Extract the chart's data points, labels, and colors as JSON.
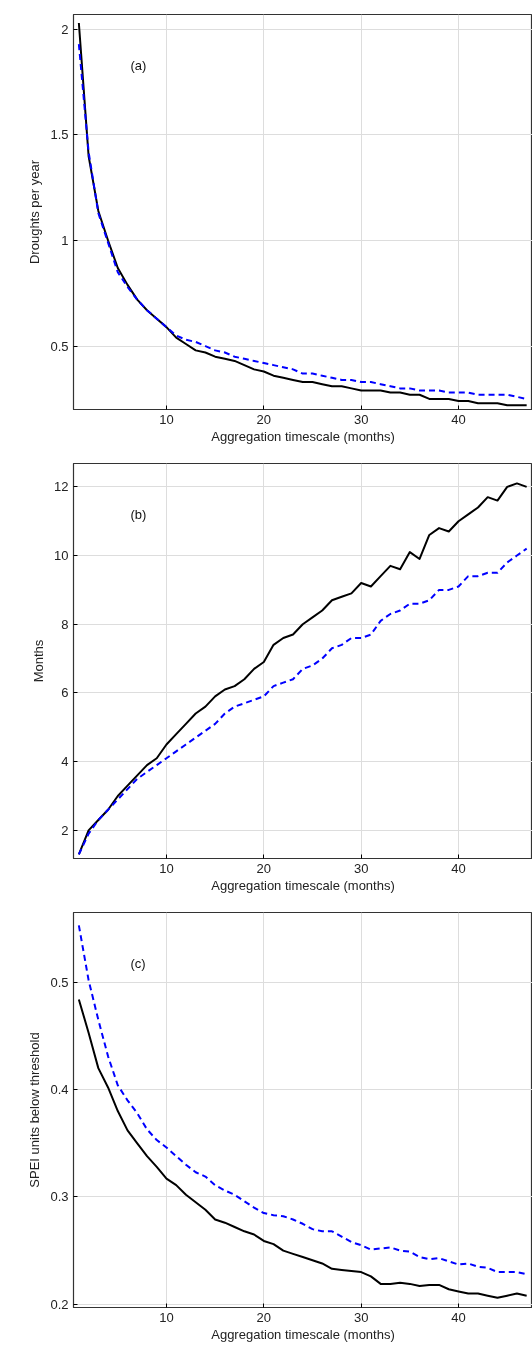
{
  "chart_data": [
    {
      "type": "line",
      "annotations": [
        "(a)"
      ],
      "xlabel": "Aggregation timescale (months)",
      "ylabel": "Droughts per year",
      "xlim": [
        0.45,
        47.6
      ],
      "ylim": [
        0.2,
        2.07
      ],
      "xticks": [
        10,
        20,
        30,
        40
      ],
      "yticks": [
        0.5,
        1,
        1.5,
        2
      ],
      "grid": true,
      "x": [
        1,
        2,
        3,
        4,
        5,
        6,
        7,
        8,
        9,
        10,
        11,
        12,
        13,
        14,
        15,
        16,
        17,
        18,
        19,
        20,
        21,
        22,
        23,
        24,
        25,
        26,
        27,
        28,
        29,
        30,
        31,
        32,
        33,
        34,
        35,
        36,
        37,
        38,
        39,
        40,
        41,
        42,
        43,
        44,
        45,
        46,
        47
      ],
      "series": [
        {
          "color": "#000000",
          "line_style": "solid",
          "values": [
            2.03,
            1.4,
            1.14,
            1.0,
            0.87,
            0.79,
            0.72,
            0.67,
            0.63,
            0.59,
            0.54,
            0.51,
            0.48,
            0.47,
            0.45,
            0.44,
            0.43,
            0.41,
            0.39,
            0.38,
            0.36,
            0.35,
            0.34,
            0.33,
            0.33,
            0.32,
            0.31,
            0.31,
            0.3,
            0.29,
            0.29,
            0.29,
            0.28,
            0.28,
            0.27,
            0.27,
            0.25,
            0.25,
            0.25,
            0.24,
            0.24,
            0.23,
            0.23,
            0.23,
            0.22,
            0.22,
            0.22
          ]
        },
        {
          "color": "#0000ff",
          "line_style": "dashed",
          "values": [
            1.93,
            1.42,
            1.13,
            0.99,
            0.85,
            0.78,
            0.72,
            0.67,
            0.63,
            0.59,
            0.55,
            0.53,
            0.52,
            0.5,
            0.48,
            0.47,
            0.45,
            0.44,
            0.43,
            0.42,
            0.41,
            0.4,
            0.39,
            0.37,
            0.37,
            0.36,
            0.35,
            0.34,
            0.34,
            0.33,
            0.33,
            0.32,
            0.31,
            0.3,
            0.3,
            0.29,
            0.29,
            0.29,
            0.28,
            0.28,
            0.28,
            0.27,
            0.27,
            0.27,
            0.27,
            0.26,
            0.25
          ]
        }
      ]
    },
    {
      "type": "line",
      "annotations": [
        "(b)"
      ],
      "xlabel": "Aggregation timescale (months)",
      "ylabel": "Months",
      "xlim": [
        0.45,
        47.6
      ],
      "ylim": [
        1.18,
        12.68
      ],
      "xticks": [
        10,
        20,
        30,
        40
      ],
      "yticks": [
        2,
        4,
        6,
        8,
        10,
        12
      ],
      "grid": true,
      "x": [
        1,
        2,
        3,
        4,
        5,
        6,
        7,
        8,
        9,
        10,
        11,
        12,
        13,
        14,
        15,
        16,
        17,
        18,
        19,
        20,
        21,
        22,
        23,
        24,
        25,
        26,
        27,
        28,
        29,
        30,
        31,
        32,
        33,
        34,
        35,
        36,
        37,
        38,
        39,
        40,
        41,
        42,
        43,
        44,
        45,
        46,
        47
      ],
      "series": [
        {
          "color": "#000000",
          "line_style": "solid",
          "values": [
            1.3,
            2.0,
            2.3,
            2.6,
            3.0,
            3.3,
            3.6,
            3.9,
            4.1,
            4.5,
            4.8,
            5.1,
            5.4,
            5.6,
            5.9,
            6.1,
            6.2,
            6.4,
            6.7,
            6.9,
            7.4,
            7.6,
            7.7,
            8.0,
            8.2,
            8.4,
            8.7,
            8.8,
            8.9,
            9.2,
            9.1,
            9.4,
            9.7,
            9.6,
            10.1,
            9.9,
            10.6,
            10.8,
            10.7,
            11.0,
            11.2,
            11.4,
            11.7,
            11.6,
            12.0,
            12.1,
            12.0
          ]
        },
        {
          "color": "#0000ff",
          "line_style": "dashed",
          "values": [
            1.3,
            1.9,
            2.3,
            2.6,
            2.9,
            3.2,
            3.5,
            3.7,
            3.9,
            4.1,
            4.3,
            4.5,
            4.7,
            4.9,
            5.1,
            5.4,
            5.6,
            5.7,
            5.8,
            5.9,
            6.2,
            6.3,
            6.4,
            6.7,
            6.8,
            7.0,
            7.3,
            7.4,
            7.6,
            7.6,
            7.7,
            8.1,
            8.3,
            8.4,
            8.6,
            8.6,
            8.7,
            9.0,
            9.0,
            9.1,
            9.4,
            9.4,
            9.5,
            9.5,
            9.8,
            10.0,
            10.2
          ]
        }
      ]
    },
    {
      "type": "line",
      "annotations": [
        "(c)"
      ],
      "xlabel": "Aggregation timescale (months)",
      "ylabel": "SPEI units below threshold",
      "xlim": [
        0.45,
        47.6
      ],
      "ylim": [
        0.197,
        0.565
      ],
      "xticks": [
        10,
        20,
        30,
        40
      ],
      "yticks": [
        0.2,
        0.3,
        0.4,
        0.5
      ],
      "grid": true,
      "x": [
        1,
        2,
        3,
        4,
        5,
        6,
        7,
        8,
        9,
        10,
        11,
        12,
        13,
        14,
        15,
        16,
        17,
        18,
        19,
        20,
        21,
        22,
        23,
        24,
        25,
        26,
        27,
        28,
        29,
        30,
        31,
        32,
        33,
        34,
        35,
        36,
        37,
        38,
        39,
        40,
        41,
        42,
        43,
        44,
        45,
        46,
        47
      ],
      "series": [
        {
          "color": "#000000",
          "line_style": "solid",
          "values": [
            0.484,
            0.453,
            0.42,
            0.402,
            0.38,
            0.362,
            0.35,
            0.338,
            0.328,
            0.317,
            0.311,
            0.302,
            0.295,
            0.288,
            0.279,
            0.276,
            0.272,
            0.268,
            0.265,
            0.259,
            0.256,
            0.25,
            0.247,
            0.244,
            0.241,
            0.238,
            0.233,
            0.232,
            0.231,
            0.23,
            0.226,
            0.219,
            0.219,
            0.22,
            0.219,
            0.217,
            0.218,
            0.218,
            0.214,
            0.212,
            0.21,
            0.21,
            0.208,
            0.206,
            0.208,
            0.21,
            0.208
          ]
        },
        {
          "color": "#0000ff",
          "line_style": "dashed",
          "values": [
            0.553,
            0.502,
            0.465,
            0.431,
            0.404,
            0.39,
            0.378,
            0.363,
            0.353,
            0.346,
            0.338,
            0.33,
            0.323,
            0.319,
            0.311,
            0.306,
            0.302,
            0.296,
            0.29,
            0.285,
            0.283,
            0.282,
            0.279,
            0.275,
            0.27,
            0.268,
            0.268,
            0.263,
            0.258,
            0.255,
            0.251,
            0.252,
            0.253,
            0.25,
            0.249,
            0.244,
            0.242,
            0.243,
            0.24,
            0.237,
            0.238,
            0.235,
            0.234,
            0.23,
            0.23,
            0.23,
            0.228
          ]
        }
      ]
    }
  ]
}
